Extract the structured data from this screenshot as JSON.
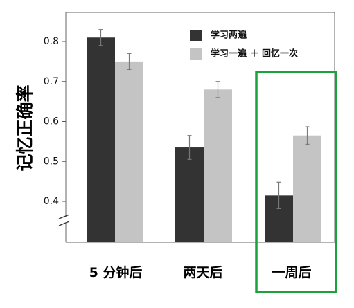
{
  "chart_data": {
    "type": "bar",
    "categories": [
      "5 分钟后",
      "两天后",
      "一周后"
    ],
    "series": [
      {
        "name": "学习两遍",
        "values": [
          0.81,
          0.535,
          0.415
        ],
        "errors": [
          0.02,
          0.03,
          0.033
        ],
        "color": "#333333"
      },
      {
        "name": "学习一遍 ＋ 回忆一次",
        "values": [
          0.75,
          0.68,
          0.565
        ],
        "errors": [
          0.02,
          0.02,
          0.022
        ],
        "color": "#c4c4c4"
      }
    ],
    "yticks": [
      0.4,
      0.5,
      0.6,
      0.7,
      0.8
    ],
    "ylim": [
      0.3,
      0.87
    ],
    "ylabel": "记忆正确率",
    "xlabel": "",
    "title": "",
    "legend_position": "top-right",
    "axis_break": true,
    "highlight": {
      "category": "一周后",
      "color": "#1aa33a"
    }
  }
}
